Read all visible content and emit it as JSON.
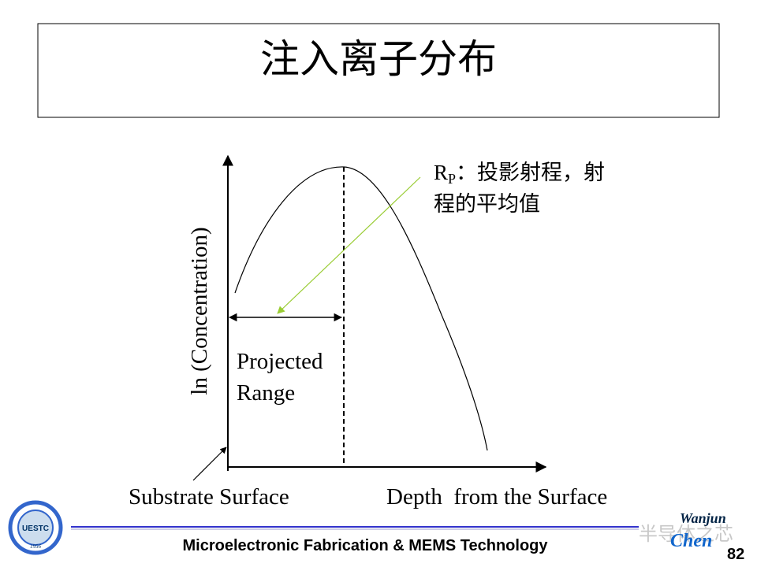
{
  "header": {
    "title": "注入离子分布"
  },
  "annotation": {
    "symbol": "R",
    "subscript": "P",
    "lines": [
      "：投影射程，射",
      "程的平均值"
    ]
  },
  "diagram": {
    "y_axis_label": "ln (Concentration)",
    "range_label": [
      "Projected",
      "Range"
    ],
    "surface_label": "Substrate Surface",
    "x_axis_label": "Depth  from the Surface"
  },
  "footer": {
    "course": "Microelectronic Fabrication & MEMS Technology",
    "page": "82",
    "watermark": "半导体之芯",
    "author_first": "Wanjun",
    "author_last": "Chen",
    "school": "UESTC",
    "year": "1956"
  }
}
